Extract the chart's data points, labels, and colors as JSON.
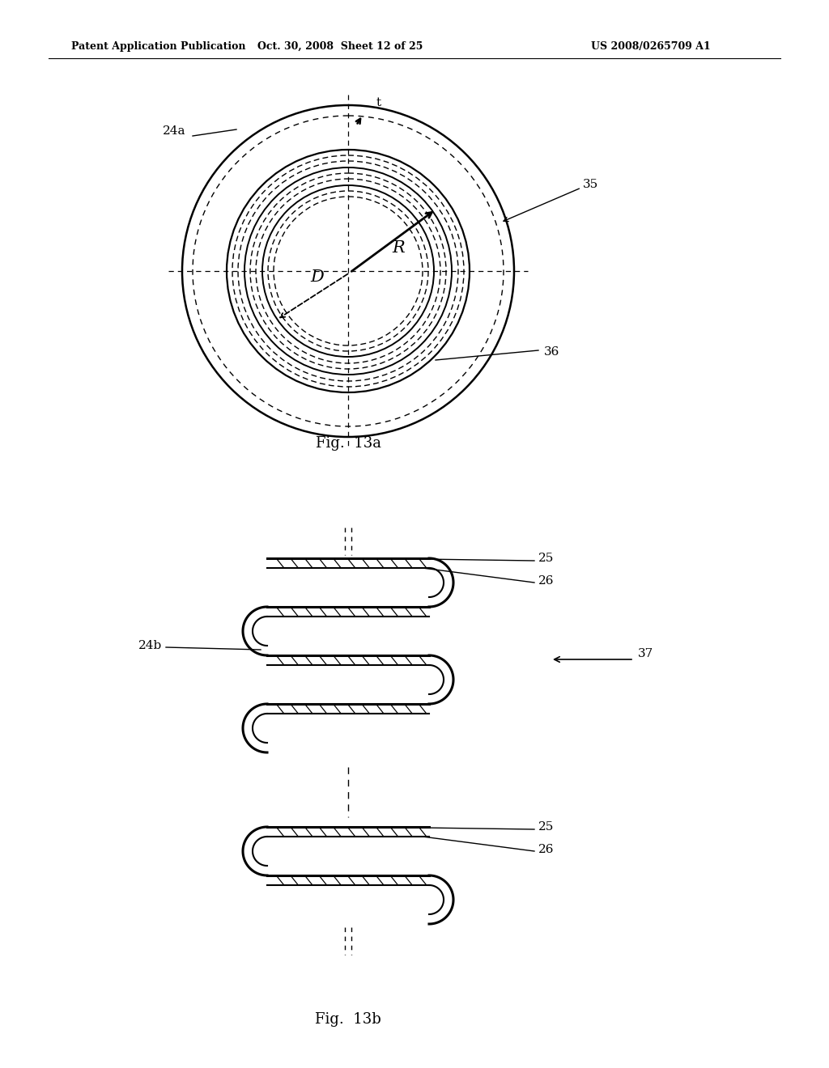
{
  "header_left": "Patent Application Publication",
  "header_mid": "Oct. 30, 2008  Sheet 12 of 25",
  "header_right": "US 2008/0265709 A1",
  "fig13a_caption": "Fig.  13a",
  "fig13b_caption": "Fig.  13b",
  "label_24a": "24a",
  "label_35": "35",
  "label_36": "36",
  "label_t": "t",
  "label_D": "D",
  "label_R": "R",
  "label_25a": "25",
  "label_26a": "26",
  "label_24b": "24b",
  "label_37": "37",
  "label_25b": "25",
  "label_26b": "26",
  "bg_color": "#ffffff",
  "line_color": "#000000"
}
